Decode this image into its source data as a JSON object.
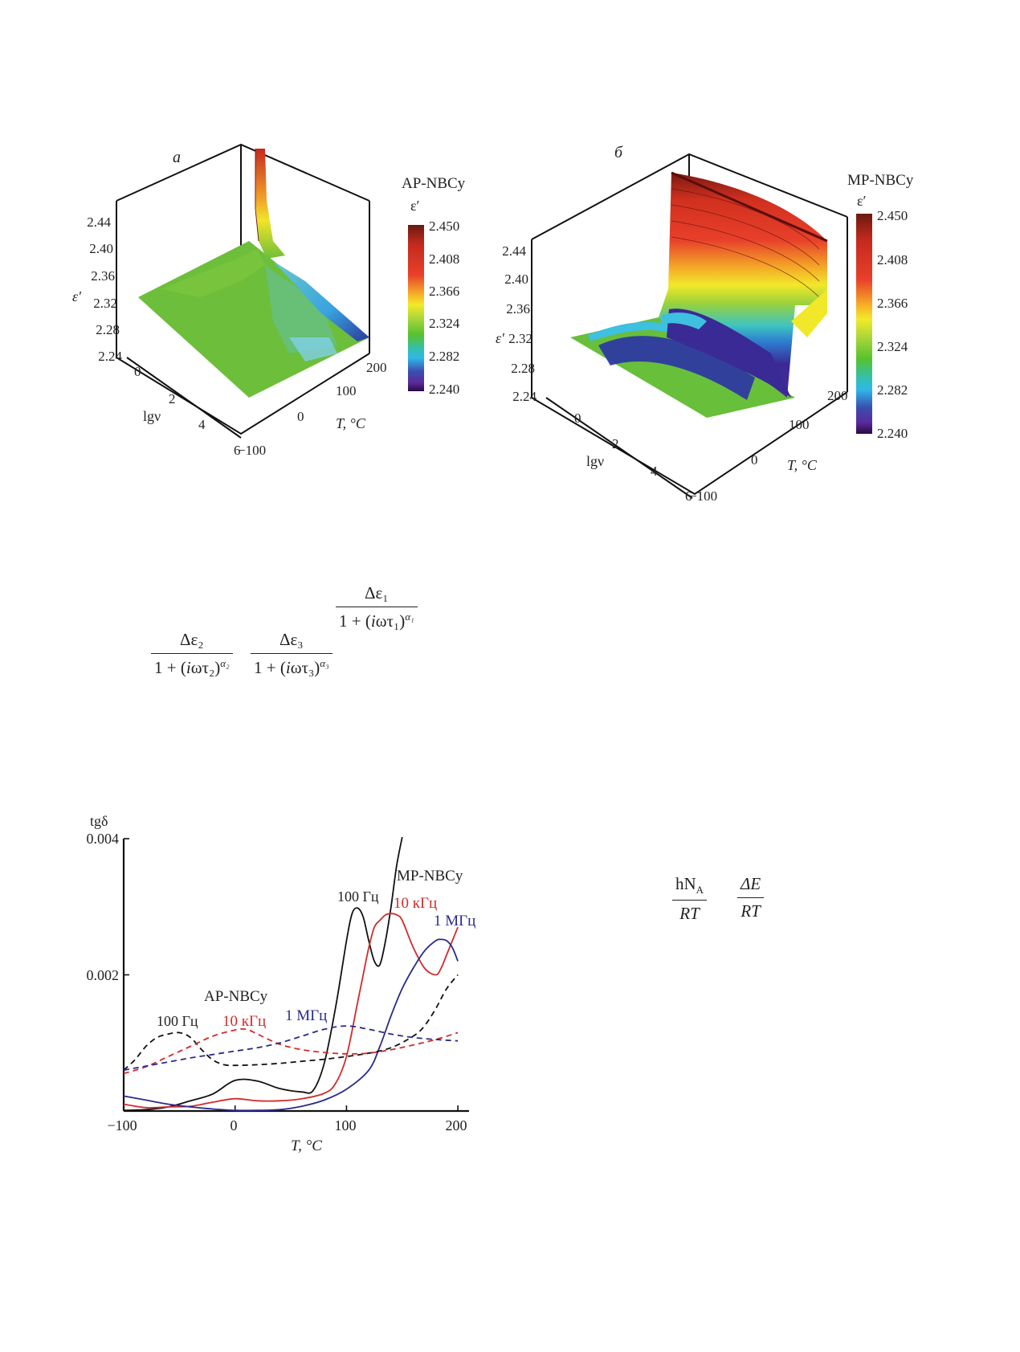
{
  "figure_a": {
    "panel_label": "а",
    "colorbar_title": "AP-NBCy",
    "colorbar_symbol": "ε′",
    "colorbar_ticks": [
      "2.450",
      "2.408",
      "2.366",
      "2.324",
      "2.282",
      "2.240"
    ],
    "z_axis_label": "ε′",
    "z_ticks": [
      "2.44",
      "2.40",
      "2.36",
      "2.32",
      "2.28",
      "2.24"
    ],
    "lgv_label": "lgν",
    "lgv_ticks": [
      "0",
      "2",
      "4",
      "6"
    ],
    "t_label": "T, °C",
    "t_ticks": [
      "−100",
      "0",
      "100",
      "200"
    ]
  },
  "figure_b": {
    "panel_label": "б",
    "colorbar_title": "MP-NBCy",
    "colorbar_symbol": "ε′",
    "colorbar_ticks": [
      "2.450",
      "2.408",
      "2.366",
      "2.324",
      "2.282",
      "2.240"
    ],
    "z_axis_label": "ε′",
    "z_ticks": [
      "2.44",
      "2.40",
      "2.36",
      "2.32",
      "2.28",
      "2.24"
    ],
    "lgv_label": "lgν",
    "lgv_ticks": [
      "0",
      "2",
      "4",
      "6"
    ],
    "t_label": "T, °C",
    "t_ticks": [
      "−100",
      "0",
      "100",
      "200"
    ]
  },
  "equations": {
    "frac1": {
      "num": "Δε₁",
      "den_pre": "1 + (",
      "den_i": "i",
      "den_mid": "ωτ₁)",
      "den_exp": "α₁"
    },
    "frac2": {
      "num": "Δε₂",
      "den_pre": "1 + (",
      "den_i": "i",
      "den_mid": "ωτ₂)",
      "den_exp": "α₂"
    },
    "frac3": {
      "num": "Δε₃",
      "den_pre": "1 + (",
      "den_i": "i",
      "den_mid": "ωτ₃)",
      "den_exp": "α₃"
    },
    "frac4": {
      "num": "hN",
      "num_sub": "A",
      "den": "RT"
    },
    "frac5": {
      "num": "ΔE",
      "den": "RT"
    }
  },
  "chart_data": {
    "type": "line",
    "ylabel": "tgδ",
    "xlabel": "T, °C",
    "xlim": [
      -100,
      210
    ],
    "ylim": [
      0,
      0.004
    ],
    "x_ticks": [
      "−100",
      "0",
      "100",
      "200"
    ],
    "y_ticks": [
      "0.002",
      "0.004"
    ],
    "annotations": [
      "MP-NBCy",
      "AP-NBCy",
      "100 Гц",
      "10 кГц",
      "1 МГц",
      "100 Гц",
      "10 кГц",
      "1 МГц"
    ],
    "colors": {
      "100 Гц": "#111111",
      "10 кГц": "#d42a2a",
      "1 МГц": "#2a2a8c"
    },
    "series": [
      {
        "name": "100 Гц",
        "group": "MP-NBCy",
        "style": "solid",
        "x": [
          -100,
          -80,
          -60,
          -40,
          -20,
          0,
          20,
          40,
          60,
          70,
          80,
          90,
          100,
          105,
          110,
          115,
          120,
          125,
          130,
          135,
          140,
          145,
          150
        ],
        "y": [
          1e-05,
          2e-05,
          6e-05,
          0.00015,
          0.00025,
          0.00045,
          0.00044,
          0.00033,
          0.00028,
          0.0003,
          0.0007,
          0.0015,
          0.0025,
          0.0029,
          0.00298,
          0.00285,
          0.0025,
          0.0022,
          0.00215,
          0.0025,
          0.003,
          0.0036,
          0.0042
        ]
      },
      {
        "name": "10 кГц",
        "group": "MP-NBCy",
        "style": "solid",
        "x": [
          -100,
          -80,
          -60,
          -40,
          -20,
          0,
          20,
          40,
          60,
          80,
          90,
          100,
          110,
          115,
          120,
          125,
          130,
          135,
          140,
          145,
          150,
          160,
          170,
          180,
          185,
          190,
          200
        ],
        "y": [
          0.0001,
          5e-05,
          6e-05,
          7e-05,
          0.00013,
          0.00018,
          0.00015,
          0.00015,
          0.00018,
          0.00026,
          0.0004,
          0.0008,
          0.0016,
          0.002,
          0.0024,
          0.0027,
          0.0028,
          0.00288,
          0.0029,
          0.00288,
          0.0028,
          0.0024,
          0.0021,
          0.002,
          0.0021,
          0.0023,
          0.0027
        ]
      },
      {
        "name": "1 МГц",
        "group": "MP-NBCy",
        "style": "solid",
        "x": [
          -100,
          -80,
          -60,
          -40,
          -20,
          0,
          20,
          40,
          60,
          80,
          100,
          120,
          130,
          140,
          150,
          160,
          170,
          180,
          185,
          190,
          195,
          200
        ],
        "y": [
          0.00022,
          0.00016,
          0.0001,
          6e-05,
          3e-05,
          1e-05,
          1e-05,
          2e-05,
          7e-05,
          0.00016,
          0.00032,
          0.0006,
          0.00095,
          0.0014,
          0.0018,
          0.0021,
          0.00235,
          0.0025,
          0.00252,
          0.0025,
          0.0024,
          0.0022
        ]
      },
      {
        "name": "100 Гц",
        "group": "AP-NBCy",
        "style": "dashed",
        "x": [
          -100,
          -90,
          -80,
          -70,
          -60,
          -50,
          -40,
          -30,
          -20,
          -10,
          0,
          20,
          40,
          60,
          80,
          100,
          120,
          140,
          160,
          170,
          180,
          190,
          200
        ],
        "y": [
          0.0006,
          0.00075,
          0.00095,
          0.00108,
          0.00113,
          0.00115,
          0.00108,
          0.0009,
          0.00075,
          0.00068,
          0.00067,
          0.00068,
          0.0007,
          0.00073,
          0.00076,
          0.0008,
          0.00085,
          0.00093,
          0.0011,
          0.00125,
          0.0015,
          0.0018,
          0.002
        ]
      },
      {
        "name": "10 кГц",
        "group": "AP-NBCy",
        "style": "dashed",
        "x": [
          -100,
          -80,
          -60,
          -40,
          -20,
          0,
          10,
          20,
          40,
          60,
          80,
          100,
          120,
          140,
          160,
          180,
          200
        ],
        "y": [
          0.00055,
          0.00065,
          0.0008,
          0.00095,
          0.0011,
          0.00119,
          0.0012,
          0.00113,
          0.00098,
          0.0009,
          0.00086,
          0.00084,
          0.00085,
          0.0009,
          0.00097,
          0.00105,
          0.00115
        ]
      },
      {
        "name": "1 МГц",
        "group": "AP-NBCy",
        "style": "dashed",
        "x": [
          -100,
          -80,
          -60,
          -40,
          -20,
          0,
          20,
          40,
          60,
          80,
          100,
          120,
          140,
          160,
          180,
          200
        ],
        "y": [
          0.0006,
          0.00066,
          0.00072,
          0.00078,
          0.00083,
          0.00088,
          0.00093,
          0.001,
          0.0011,
          0.0012,
          0.00125,
          0.0012,
          0.00113,
          0.00108,
          0.00105,
          0.00103
        ]
      }
    ]
  }
}
